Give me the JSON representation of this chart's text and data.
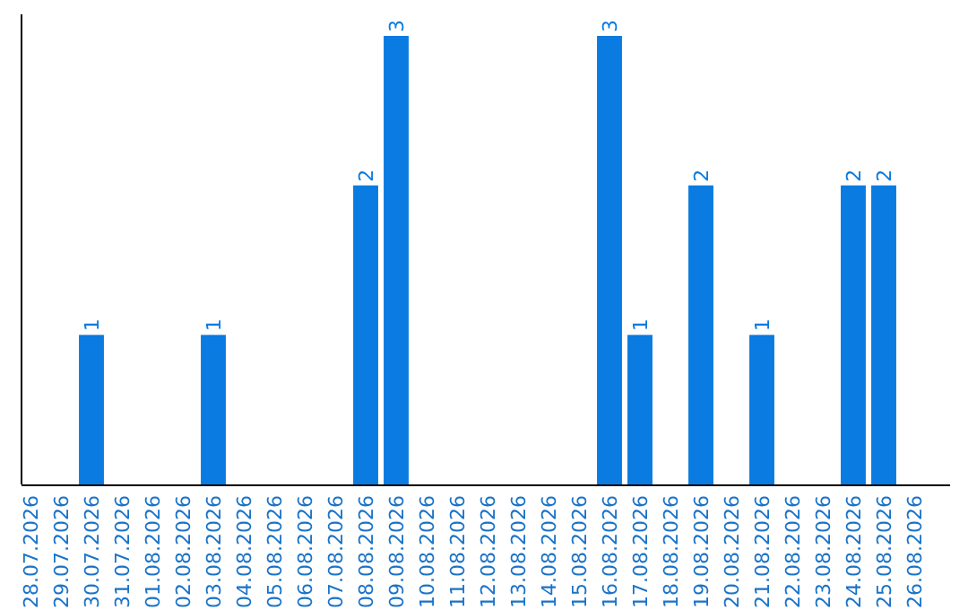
{
  "chart_data": {
    "type": "bar",
    "categories": [
      "28.07.2026",
      "29.07.2026",
      "30.07.2026",
      "31.07.2026",
      "01.08.2026",
      "02.08.2026",
      "03.08.2026",
      "04.08.2026",
      "05.08.2026",
      "06.08.2026",
      "07.08.2026",
      "08.08.2026",
      "09.08.2026",
      "10.08.2026",
      "11.08.2026",
      "12.08.2026",
      "13.08.2026",
      "14.08.2026",
      "15.08.2026",
      "16.08.2026",
      "17.08.2026",
      "18.08.2026",
      "19.08.2026",
      "20.08.2026",
      "21.08.2026",
      "22.08.2026",
      "23.08.2026",
      "24.08.2026",
      "25.08.2026",
      "26.08.2026"
    ],
    "values": [
      0,
      0,
      1,
      0,
      0,
      0,
      1,
      0,
      0,
      0,
      0,
      2,
      3,
      0,
      0,
      0,
      0,
      0,
      0,
      3,
      1,
      0,
      2,
      0,
      1,
      0,
      0,
      2,
      2,
      0
    ],
    "value_labels": [
      null,
      null,
      "1",
      null,
      null,
      null,
      "1",
      null,
      null,
      null,
      null,
      "2",
      "3",
      null,
      null,
      null,
      null,
      null,
      null,
      "3",
      "1",
      null,
      "2",
      null,
      "1",
      null,
      null,
      "2",
      "2",
      null
    ],
    "color": "#0a7be0",
    "tick_labels": "x"
  }
}
